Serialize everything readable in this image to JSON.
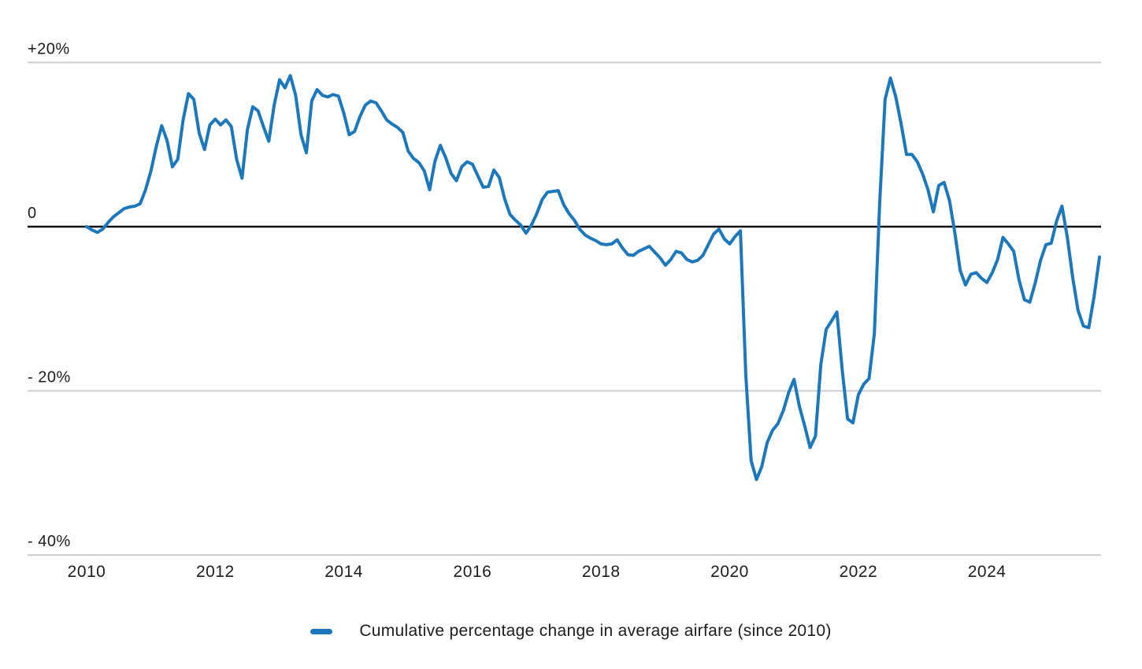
{
  "colors": {
    "line": "#1c78ba",
    "grid": "#cccccc",
    "zero_line": "#111111",
    "text": "#1d1d1d",
    "background": "#ffffff"
  },
  "legend": {
    "label": "Cumulative percentage change in average airfare (since 2010)"
  },
  "chart_data": {
    "type": "line",
    "title": "",
    "xlabel": "",
    "ylabel": "",
    "unit": "%",
    "frequency": "monthly",
    "x_start": "2010-01",
    "x_end": "2025-10",
    "grid": "horizontal",
    "zero_baseline": true,
    "legend_position": "bottom",
    "ylim": [
      -43,
      23
    ],
    "y_ticks": [
      {
        "label": "+20%",
        "value": 20
      },
      {
        "label": "0",
        "value": 0
      },
      {
        "label": "- 20%",
        "value": -20
      },
      {
        "label": "- 40%",
        "value": -40
      }
    ],
    "x_ticks": [
      {
        "label": "2010",
        "year": 2010
      },
      {
        "label": "2012",
        "year": 2012
      },
      {
        "label": "2014",
        "year": 2014
      },
      {
        "label": "2016",
        "year": 2016
      },
      {
        "label": "2018",
        "year": 2018
      },
      {
        "label": "2020",
        "year": 2020
      },
      {
        "label": "2022",
        "year": 2022
      },
      {
        "label": "2024",
        "year": 2024
      }
    ],
    "series": [
      {
        "name": "Cumulative percentage change in average airfare (since 2010)",
        "color": "#1c78ba",
        "values": [
          0,
          -0.4,
          -0.7,
          -0.3,
          0.5,
          1.2,
          1.7,
          2.2,
          2.4,
          2.5,
          2.8,
          4.5,
          6.8,
          9.8,
          12.3,
          10.5,
          7.3,
          8.2,
          13.0,
          16.2,
          15.5,
          11.4,
          9.4,
          12.4,
          13.1,
          12.4,
          13.0,
          12.2,
          8.2,
          5.9,
          11.8,
          14.6,
          14.1,
          12.2,
          10.4,
          14.8,
          17.9,
          16.9,
          18.4,
          16.0,
          11.2,
          9.0,
          15.3,
          16.7,
          16.0,
          15.8,
          16.1,
          15.9,
          13.8,
          11.2,
          11.6,
          13.4,
          14.8,
          15.3,
          15.1,
          14.1,
          13.0,
          12.5,
          12.1,
          11.5,
          9.2,
          8.3,
          7.8,
          6.8,
          4.5,
          8.0,
          9.9,
          8.4,
          6.5,
          5.6,
          7.3,
          7.9,
          7.6,
          6.2,
          4.8,
          4.9,
          6.9,
          6.0,
          3.4,
          1.5,
          0.8,
          0.2,
          -0.8,
          0.2,
          1.6,
          3.3,
          4.2,
          4.3,
          4.4,
          2.7,
          1.6,
          0.8,
          -0.3,
          -1.0,
          -1.4,
          -1.7,
          -2.1,
          -2.2,
          -2.1,
          -1.6,
          -2.6,
          -3.4,
          -3.5,
          -3.0,
          -2.7,
          -2.4,
          -3.1,
          -3.8,
          -4.7,
          -4.0,
          -3.0,
          -3.2,
          -4.0,
          -4.3,
          -4.1,
          -3.5,
          -2.2,
          -0.9,
          -0.3,
          -1.5,
          -2.1,
          -1.2,
          -0.5,
          -18.0,
          -28.5,
          -30.8,
          -29.2,
          -26.3,
          -24.8,
          -24.0,
          -22.4,
          -20.2,
          -18.6,
          -21.9,
          -24.3,
          -26.9,
          -25.5,
          -16.8,
          -12.5,
          -11.5,
          -10.4,
          -17.5,
          -23.4,
          -23.9,
          -20.5,
          -19.2,
          -18.5,
          -13.0,
          3.0,
          15.5,
          18.1,
          15.8,
          12.5,
          8.8,
          8.8,
          7.9,
          6.4,
          4.5,
          1.8,
          5.0,
          5.4,
          3.2,
          -0.7,
          -5.3,
          -7.1,
          -5.8,
          -5.6,
          -6.3,
          -6.8,
          -5.6,
          -4.0,
          -1.3,
          -2.1,
          -3.0,
          -6.5,
          -8.9,
          -9.2,
          -6.9,
          -4.1,
          -2.2,
          -2.0,
          0.7,
          2.5,
          -1.3,
          -6.2,
          -10.2,
          -12.1,
          -12.3,
          -8.5,
          -3.7
        ]
      }
    ]
  }
}
